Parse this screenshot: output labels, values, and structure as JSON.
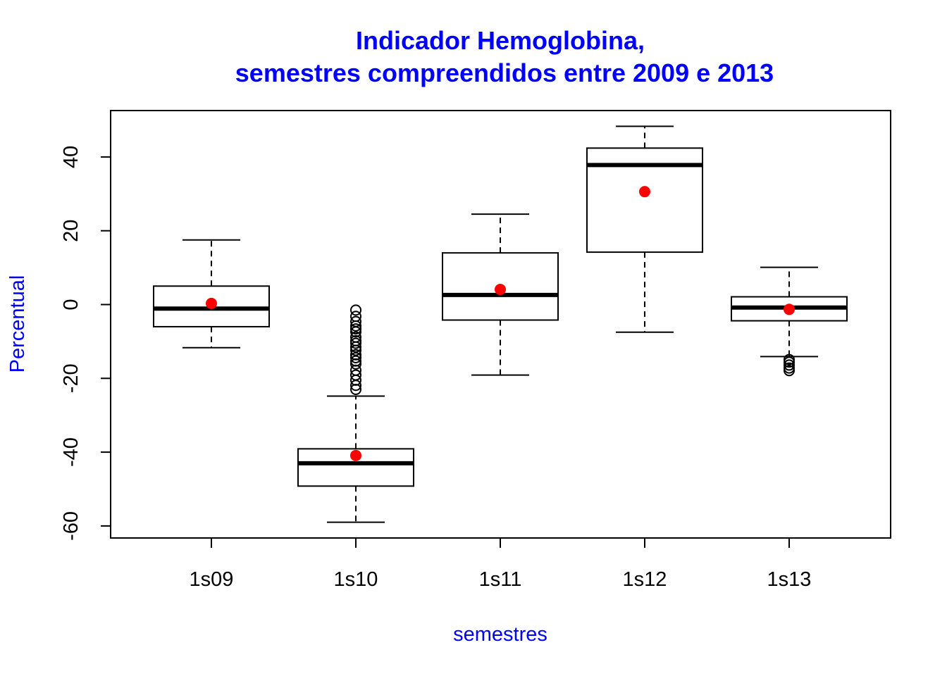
{
  "chart_data": {
    "type": "boxplot",
    "title_line1": "Indicador Hemoglobina,",
    "title_line2": "semestres compreendidos entre 2009 e 2013",
    "xlabel": "semestres",
    "ylabel": "Percentual",
    "ylim": [
      -63,
      52
    ],
    "yticks": [
      -60,
      -40,
      -20,
      0,
      20,
      40
    ],
    "categories": [
      "1s09",
      "1s10",
      "1s11",
      "1s12",
      "1s13"
    ],
    "boxes": [
      {
        "name": "1s09",
        "lower_whisker": -11.7,
        "q1": -6.0,
        "median": -1.1,
        "q3": 5.0,
        "upper_whisker": 17.5,
        "mean": 0.3,
        "outliers": []
      },
      {
        "name": "1s10",
        "lower_whisker": -59.0,
        "q1": -49.2,
        "median": -43.0,
        "q3": -39.1,
        "upper_whisker": -24.8,
        "mean": -40.9,
        "outliers": [
          -1.5,
          -3.2,
          -4.6,
          -5.8,
          -6.6,
          -7.4,
          -8.8,
          -9.8,
          -10.5,
          -11.5,
          -12.4,
          -13.6,
          -14.4,
          -15.3,
          -16.1,
          -17.8,
          -19.1,
          -20.5,
          -21.9,
          -23.0
        ]
      },
      {
        "name": "1s11",
        "lower_whisker": -19.1,
        "q1": -4.2,
        "median": 2.6,
        "q3": 14.0,
        "upper_whisker": 24.5,
        "mean": 4.1,
        "outliers": []
      },
      {
        "name": "1s12",
        "lower_whisker": -7.5,
        "q1": 14.2,
        "median": 37.8,
        "q3": 42.4,
        "upper_whisker": 48.3,
        "mean": 30.6,
        "outliers": []
      },
      {
        "name": "1s13",
        "lower_whisker": -14.1,
        "q1": -4.4,
        "median": -0.8,
        "q3": 2.1,
        "upper_whisker": 10.1,
        "mean": -1.3,
        "outliers": [
          -14.9,
          -15.6,
          -16.4,
          -17.2,
          -17.9
        ]
      }
    ],
    "colors": {
      "title": "#0000ff",
      "axis_labels": "#0000ff",
      "mean_marker": "#ff0000",
      "boxes": "#000000"
    }
  }
}
